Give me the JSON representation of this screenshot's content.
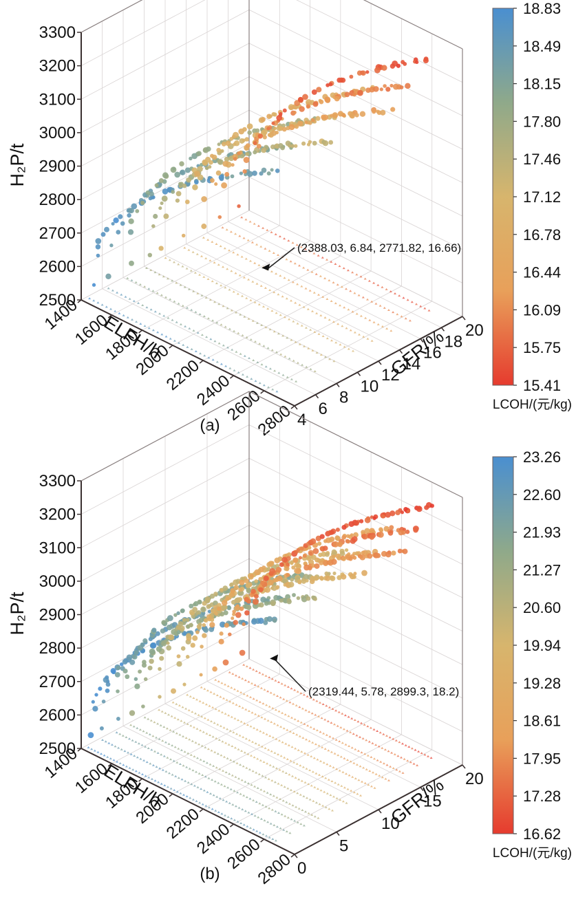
{
  "figure": {
    "panels": [
      "(a)",
      "(b)"
    ]
  },
  "chart_data": [
    {
      "type": "scatter",
      "subtype": "3d-scatter-colormapped",
      "panel_label": "(a)",
      "title": "",
      "xlabel": "ELFH/h",
      "ylabel": "GFR/%",
      "zlabel": "H₂P/t",
      "xlim": [
        1400,
        2800
      ],
      "ylim": [
        4,
        20
      ],
      "zlim": [
        2500,
        3300
      ],
      "x_ticks": [
        "1400",
        "1600",
        "1800",
        "2000",
        "2200",
        "2400",
        "2600",
        "2800"
      ],
      "y_ticks": [
        "4",
        "6",
        "8",
        "10",
        "12",
        "14",
        "16",
        "18",
        "20"
      ],
      "z_ticks": [
        "2500",
        "2600",
        "2700",
        "2800",
        "2900",
        "3000",
        "3100",
        "3200",
        "3300"
      ],
      "grid": true,
      "colorbar": {
        "label": "LCOH/(元/kg)",
        "range": [
          15.41,
          18.83
        ],
        "ticks": [
          "18.83",
          "18.49",
          "18.15",
          "17.80",
          "17.46",
          "17.12",
          "16.78",
          "16.44",
          "16.09",
          "15.75",
          "15.41"
        ],
        "colors": [
          "#e63b2e",
          "#e8a05a",
          "#d7b56d",
          "#8fa98a",
          "#4a8fd0"
        ]
      },
      "annotation": {
        "text": "(2388.03, 6.84, 2771.82, 16.66)",
        "point": {
          "ELFH": 2388.03,
          "GFR": 6.84,
          "H2P": 2771.82,
          "LCOH": 16.66
        }
      },
      "series_description": "Pareto-front points: curved bands rising from ~2500 t at low ELFH to ~3300 t, blue (high LCOH) at low GFR/ELFH, red (low LCOH) at high ELFH; projected shadow points on floor plane"
    },
    {
      "type": "scatter",
      "subtype": "3d-scatter-colormapped",
      "panel_label": "(b)",
      "title": "",
      "xlabel": "ELFH/h",
      "ylabel": "GFR/%",
      "zlabel": "H₂P/t",
      "xlim": [
        1400,
        2800
      ],
      "ylim": [
        0,
        20
      ],
      "zlim": [
        2500,
        3300
      ],
      "x_ticks": [
        "1400",
        "1600",
        "1800",
        "2000",
        "2200",
        "2400",
        "2600",
        "2800"
      ],
      "y_ticks": [
        "0",
        "5",
        "10",
        "15",
        "20"
      ],
      "z_ticks": [
        "2500",
        "2600",
        "2700",
        "2800",
        "2900",
        "3000",
        "3100",
        "3200",
        "3300"
      ],
      "grid": true,
      "colorbar": {
        "label": "LCOH/(元/kg)",
        "range": [
          16.62,
          23.26
        ],
        "ticks": [
          "23.26",
          "22.60",
          "21.93",
          "21.27",
          "20.60",
          "19.94",
          "19.28",
          "18.61",
          "17.95",
          "17.28",
          "16.62"
        ],
        "colors": [
          "#e63b2e",
          "#e8a05a",
          "#d7b56d",
          "#8fa98a",
          "#4a8fd0"
        ]
      },
      "annotation": {
        "text": "(2319.44, 5.78, 2899.3, 18.2)",
        "point": {
          "ELFH": 2319.44,
          "GFR": 5.78,
          "H2P": 2899.3,
          "LCOH": 18.2
        }
      },
      "series_description": "Denser set of curved Pareto bands spanning GFR 0-20%, blue-teal at low GFR, red-orange at high GFR; projected shadow points on floor plane"
    }
  ]
}
